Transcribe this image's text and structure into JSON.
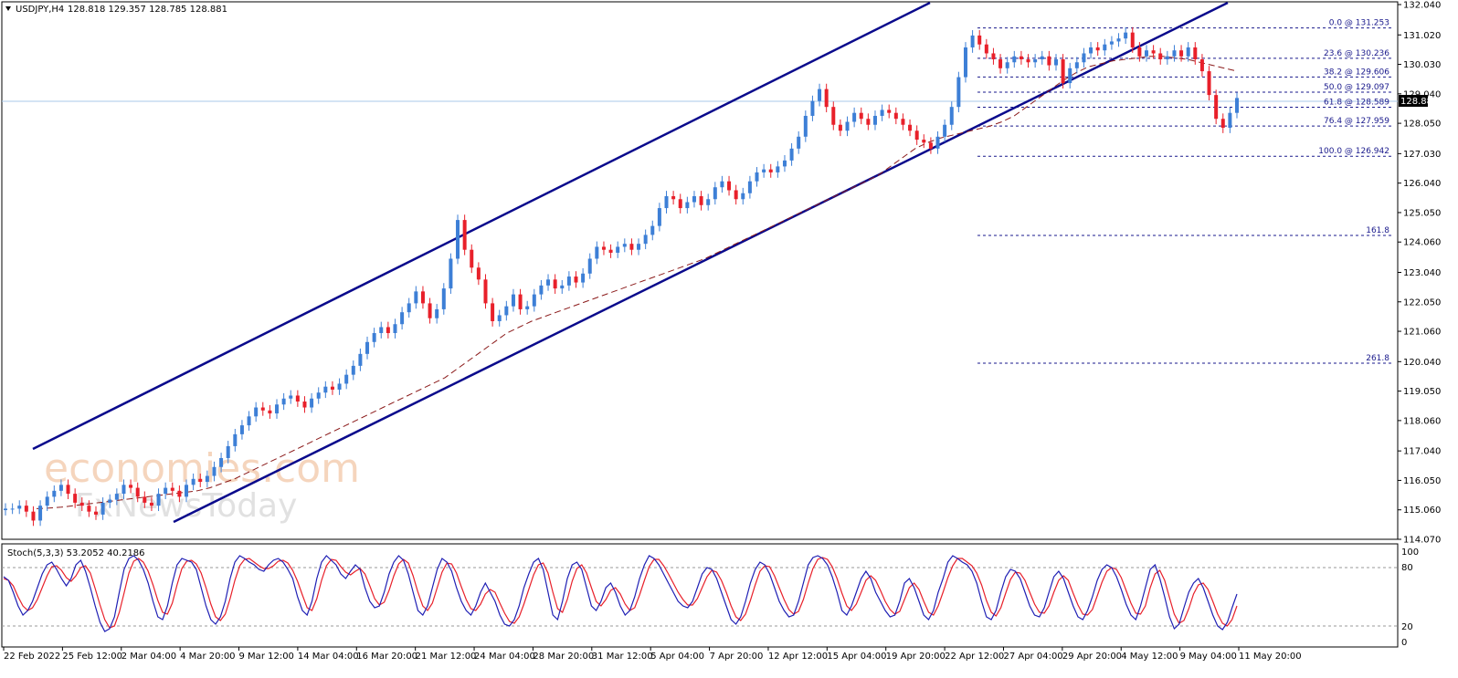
{
  "header": {
    "arrow_icon": "triangle-down-icon",
    "symbol": "USDJPY,H4",
    "ohlc": "128.818 129.357 128.785 128.881"
  },
  "watermark": {
    "brand_top": "economies.com",
    "brand_bottom": "FxNewsToday"
  },
  "stochastic": {
    "label": "Stoch(5,3,3) 53.2052 40.2186",
    "levels": [
      "100",
      "80",
      "20",
      "0"
    ],
    "main_color": "#1f1fb4",
    "signal_color": "#e8202a",
    "k_values": [
      72,
      68,
      55,
      40,
      30,
      35,
      45,
      60,
      75,
      85,
      88,
      80,
      70,
      62,
      70,
      85,
      90,
      78,
      60,
      40,
      22,
      12,
      15,
      28,
      55,
      80,
      92,
      95,
      90,
      80,
      65,
      45,
      28,
      25,
      40,
      65,
      85,
      92,
      90,
      88,
      80,
      60,
      40,
      25,
      20,
      28,
      45,
      70,
      88,
      95,
      92,
      88,
      85,
      80,
      78,
      85,
      90,
      92,
      88,
      80,
      70,
      50,
      35,
      30,
      45,
      70,
      88,
      95,
      90,
      85,
      75,
      70,
      78,
      85,
      80,
      60,
      45,
      38,
      40,
      55,
      75,
      88,
      95,
      90,
      75,
      55,
      35,
      30,
      40,
      60,
      80,
      92,
      88,
      78,
      60,
      45,
      35,
      30,
      40,
      55,
      65,
      55,
      45,
      30,
      20,
      18,
      25,
      40,
      60,
      75,
      88,
      92,
      80,
      55,
      30,
      25,
      45,
      70,
      85,
      88,
      80,
      60,
      40,
      35,
      45,
      60,
      65,
      55,
      40,
      30,
      35,
      50,
      70,
      85,
      95,
      92,
      85,
      75,
      65,
      55,
      45,
      40,
      38,
      45,
      60,
      75,
      82,
      80,
      70,
      55,
      40,
      25,
      20,
      28,
      45,
      65,
      80,
      88,
      85,
      75,
      60,
      45,
      35,
      28,
      30,
      45,
      65,
      85,
      93,
      95,
      92,
      85,
      72,
      55,
      35,
      30,
      40,
      55,
      70,
      78,
      70,
      55,
      45,
      35,
      28,
      30,
      45,
      65,
      70,
      60,
      45,
      30,
      25,
      35,
      55,
      70,
      88,
      95,
      92,
      88,
      85,
      78,
      65,
      45,
      28,
      25,
      35,
      55,
      72,
      80,
      78,
      70,
      55,
      40,
      30,
      28,
      38,
      55,
      72,
      78,
      70,
      55,
      40,
      28,
      25,
      35,
      50,
      68,
      80,
      85,
      82,
      72,
      58,
      42,
      30,
      25,
      40,
      60,
      80,
      85,
      70,
      50,
      28,
      15,
      20,
      38,
      55,
      65,
      70,
      60,
      45,
      30,
      18,
      14,
      22,
      38,
      53
    ],
    "d_values": [
      70,
      68,
      62,
      50,
      40,
      35,
      38,
      47,
      60,
      73,
      83,
      84,
      79,
      71,
      67,
      73,
      82,
      84,
      76,
      59,
      41,
      25,
      16,
      18,
      33,
      54,
      76,
      89,
      92,
      88,
      78,
      63,
      46,
      33,
      31,
      43,
      63,
      81,
      89,
      90,
      86,
      76,
      60,
      42,
      28,
      24,
      31,
      48,
      68,
      84,
      91,
      92,
      88,
      84,
      81,
      81,
      84,
      89,
      90,
      87,
      79,
      67,
      52,
      38,
      35,
      48,
      68,
      84,
      91,
      90,
      83,
      77,
      74,
      78,
      81,
      75,
      62,
      48,
      41,
      44,
      57,
      73,
      86,
      91,
      87,
      73,
      55,
      40,
      35,
      43,
      60,
      77,
      87,
      86,
      76,
      61,
      47,
      37,
      35,
      42,
      53,
      58,
      55,
      43,
      32,
      23,
      21,
      28,
      42,
      58,
      74,
      85,
      87,
      76,
      55,
      37,
      33,
      47,
      67,
      81,
      85,
      76,
      60,
      45,
      40,
      47,
      57,
      60,
      53,
      42,
      35,
      38,
      52,
      68,
      83,
      91,
      91,
      84,
      75,
      65,
      55,
      47,
      41,
      41,
      48,
      60,
      72,
      79,
      77,
      68,
      55,
      40,
      28,
      24,
      31,
      46,
      63,
      78,
      84,
      83,
      73,
      60,
      47,
      36,
      31,
      34,
      47,
      65,
      81,
      91,
      93,
      91,
      83,
      70,
      54,
      40,
      35,
      42,
      55,
      68,
      73,
      68,
      57,
      45,
      36,
      31,
      34,
      47,
      60,
      65,
      58,
      45,
      33,
      30,
      40,
      55,
      71,
      84,
      92,
      92,
      88,
      84,
      76,
      63,
      46,
      33,
      29,
      38,
      54,
      69,
      77,
      76,
      68,
      55,
      42,
      33,
      32,
      40,
      55,
      68,
      73,
      68,
      54,
      41,
      31,
      30,
      36,
      51,
      66,
      78,
      82,
      80,
      71,
      57,
      43,
      32,
      31,
      40,
      60,
      75,
      79,
      68,
      49,
      31,
      21,
      24,
      37,
      53,
      63,
      65,
      58,
      45,
      31,
      21,
      18,
      25,
      40
    ]
  },
  "chart_data": {
    "type": "candlestick",
    "title": "USDJPY,H4",
    "price_axis_ticks": [
      "132.040",
      "131.020",
      "130.030",
      "129.040",
      "128.050",
      "127.030",
      "126.040",
      "125.050",
      "124.060",
      "123.040",
      "122.050",
      "121.060",
      "120.040",
      "119.050",
      "118.060",
      "117.040",
      "116.050",
      "115.060",
      "114.070"
    ],
    "current_price": "128.881",
    "ylim": [
      114.07,
      132.04
    ],
    "time_axis_labels": [
      "22 Feb 2022",
      "25 Feb 12:00",
      "2 Mar 04:00",
      "4 Mar 20:00",
      "9 Mar 12:00",
      "14 Mar 04:00",
      "16 Mar 20:00",
      "21 Mar 12:00",
      "24 Mar 04:00",
      "28 Mar 20:00",
      "31 Mar 12:00",
      "5 Apr 04:00",
      "7 Apr 20:00",
      "12 Apr 12:00",
      "15 Apr 04:00",
      "19 Apr 20:00",
      "22 Apr 12:00",
      "27 Apr 04:00",
      "29 Apr 20:00",
      "4 May 12:00",
      "9 May 04:00",
      "11 May 20:00"
    ],
    "fibonacci_levels": [
      {
        "label": "0.0 @ 131.253",
        "price": 131.253
      },
      {
        "label": "23.6 @ 130.236",
        "price": 130.236
      },
      {
        "label": "38.2 @ 129.606",
        "price": 129.606
      },
      {
        "label": "50.0 @ 129.097",
        "price": 129.097
      },
      {
        "label": "61.8 @ 128.589",
        "price": 128.589
      },
      {
        "label": "76.4 @ 127.959",
        "price": 127.959
      },
      {
        "label": "100.0 @ 126.942",
        "price": 126.942
      },
      {
        "label": "161.8",
        "price": 124.28
      },
      {
        "label": "261.8",
        "price": 119.99
      }
    ],
    "colors": {
      "bull": "#3d7fd6",
      "bear": "#e8202a",
      "channel": "#0a0a8c",
      "fib": "#1a1a8c",
      "ma": "#8b1a1a",
      "price_line": "#a8c8e8"
    },
    "series": [
      {
        "name": "close",
        "values": [
          115.1,
          115.1,
          115.2,
          115.0,
          114.7,
          115.2,
          115.5,
          115.7,
          115.9,
          115.6,
          115.3,
          115.2,
          115.0,
          114.9,
          115.3,
          115.4,
          115.6,
          115.9,
          115.8,
          115.5,
          115.3,
          115.2,
          115.6,
          115.8,
          115.7,
          115.5,
          115.9,
          116.1,
          116.0,
          116.2,
          116.5,
          116.8,
          117.2,
          117.6,
          117.9,
          118.2,
          118.5,
          118.4,
          118.3,
          118.6,
          118.8,
          118.9,
          118.7,
          118.5,
          118.8,
          119.0,
          119.2,
          119.1,
          119.3,
          119.6,
          119.9,
          120.3,
          120.7,
          121.0,
          121.2,
          121.0,
          121.3,
          121.7,
          122.0,
          122.4,
          122.0,
          121.5,
          121.8,
          122.5,
          123.5,
          124.8,
          123.8,
          123.2,
          122.8,
          122.0,
          121.4,
          121.6,
          121.9,
          122.3,
          121.8,
          121.9,
          122.3,
          122.6,
          122.8,
          122.5,
          122.6,
          122.9,
          122.7,
          123.0,
          123.5,
          123.9,
          123.8,
          123.7,
          123.9,
          124.0,
          123.8,
          124.0,
          124.3,
          124.6,
          125.2,
          125.6,
          125.5,
          125.2,
          125.4,
          125.6,
          125.3,
          125.5,
          125.9,
          126.1,
          125.8,
          125.5,
          125.7,
          126.1,
          126.4,
          126.5,
          126.4,
          126.6,
          126.8,
          127.2,
          127.6,
          128.3,
          128.8,
          129.2,
          128.6,
          128.0,
          127.8,
          128.1,
          128.4,
          128.2,
          128.0,
          128.3,
          128.5,
          128.4,
          128.2,
          128.0,
          127.8,
          127.5,
          127.4,
          127.2,
          127.6,
          128.0,
          128.6,
          129.6,
          130.6,
          131.0,
          130.7,
          130.4,
          130.2,
          129.9,
          130.1,
          130.3,
          130.2,
          130.1,
          130.2,
          130.3,
          130.0,
          130.2,
          129.4,
          129.9,
          130.1,
          130.4,
          130.6,
          130.5,
          130.7,
          130.8,
          130.9,
          131.1,
          130.6,
          130.3,
          130.5,
          130.4,
          130.2,
          130.3,
          130.5,
          130.3,
          130.6,
          130.2,
          129.8,
          129.0,
          128.2,
          127.9,
          128.4,
          128.9
        ]
      },
      {
        "name": "MA",
        "values": [
          115.1,
          115.12,
          115.15,
          115.2,
          115.25,
          115.3,
          115.35,
          115.4,
          115.45,
          115.5,
          115.55,
          115.6,
          115.65,
          115.7,
          115.8,
          115.95,
          116.1,
          116.3,
          116.5,
          116.7,
          116.9,
          117.1,
          117.3,
          117.5,
          117.7,
          117.9,
          118.1,
          118.3,
          118.5,
          118.7,
          118.9,
          119.1,
          119.3,
          119.5,
          119.8,
          120.1,
          120.4,
          120.7,
          121.0,
          121.2,
          121.4,
          121.55,
          121.7,
          121.85,
          122.0,
          122.15,
          122.3,
          122.45,
          122.6,
          122.75,
          122.9,
          123.05,
          123.2,
          123.35,
          123.5,
          123.7,
          123.9,
          124.1,
          124.3,
          124.5,
          124.7,
          124.9,
          125.1,
          125.3,
          125.5,
          125.7,
          125.9,
          126.1,
          126.3,
          126.6,
          126.9,
          127.2,
          127.4,
          127.55,
          127.65,
          127.75,
          127.85,
          127.95,
          128.1,
          128.3,
          128.6,
          128.9,
          129.2,
          129.5,
          129.75,
          129.95,
          130.05,
          130.15,
          130.2,
          130.25,
          130.3,
          130.3,
          130.25,
          130.2,
          130.1,
          130.0,
          129.9,
          129.8
        ]
      }
    ]
  }
}
